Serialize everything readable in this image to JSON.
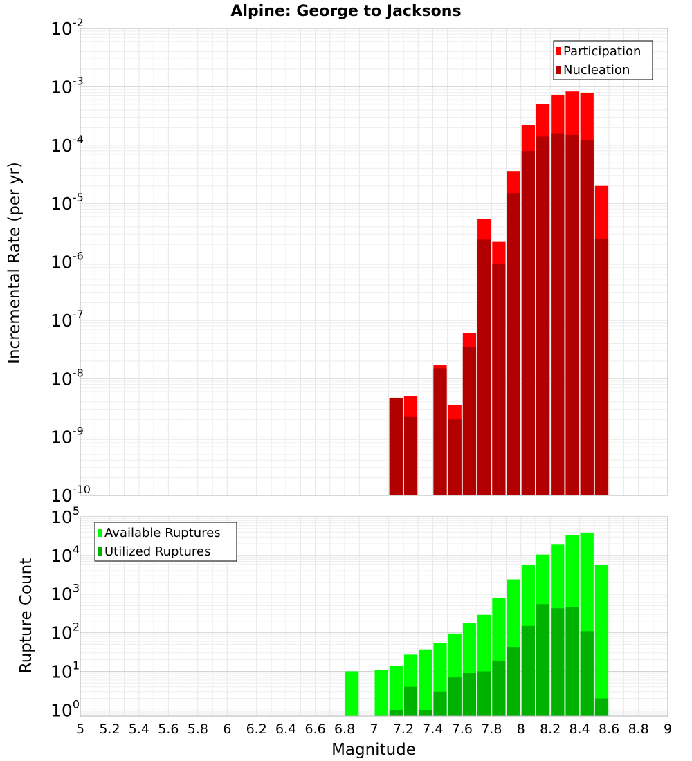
{
  "chart_data": [
    {
      "type": "bar",
      "title": "Alpine: George to Jacksons",
      "xlabel": "",
      "ylabel": "Incremental Rate (per yr)",
      "y_scale": "log",
      "ylim": [
        1e-10,
        0.01
      ],
      "xlim": [
        5,
        9
      ],
      "y_ticks": [
        {
          "base": "10",
          "exp": "-10"
        },
        {
          "base": "10",
          "exp": "-9"
        },
        {
          "base": "10",
          "exp": "-8"
        },
        {
          "base": "10",
          "exp": "-7"
        },
        {
          "base": "10",
          "exp": "-6"
        },
        {
          "base": "10",
          "exp": "-5"
        },
        {
          "base": "10",
          "exp": "-4"
        },
        {
          "base": "10",
          "exp": "-3"
        },
        {
          "base": "10",
          "exp": "-2"
        }
      ],
      "grid": true,
      "legend_position": "top-right",
      "bar_width": 0.1,
      "series": [
        {
          "name": "Participation",
          "color": "#ff0000",
          "points": [
            [
              7.15,
              4.7e-09
            ],
            [
              7.25,
              5e-09
            ],
            [
              7.45,
              1.7e-08
            ],
            [
              7.55,
              3.5e-09
            ],
            [
              7.65,
              6e-08
            ],
            [
              7.75,
              5.5e-06
            ],
            [
              7.85,
              2.2e-06
            ],
            [
              7.95,
              3.6e-05
            ],
            [
              8.05,
              0.00022
            ],
            [
              8.15,
              0.0005
            ],
            [
              8.25,
              0.00073
            ],
            [
              8.35,
              0.00083
            ],
            [
              8.45,
              0.00077
            ],
            [
              8.55,
              2e-05
            ]
          ]
        },
        {
          "name": "Nucleation",
          "color": "#b20000",
          "points": [
            [
              7.15,
              4.6e-09
            ],
            [
              7.25,
              2.2e-09
            ],
            [
              7.45,
              1.5e-08
            ],
            [
              7.55,
              2e-09
            ],
            [
              7.65,
              3.5e-08
            ],
            [
              7.75,
              2.4e-06
            ],
            [
              7.85,
              9.3e-07
            ],
            [
              7.95,
              1.5e-05
            ],
            [
              8.05,
              8e-05
            ],
            [
              8.15,
              0.00014
            ],
            [
              8.25,
              0.00016
            ],
            [
              8.35,
              0.00015
            ],
            [
              8.45,
              0.00012
            ],
            [
              8.55,
              2.5e-06
            ]
          ]
        }
      ]
    },
    {
      "type": "bar",
      "title": "",
      "xlabel": "Magnitude",
      "ylabel": "Rupture Count",
      "y_scale": "log",
      "ylim": [
        0.7,
        100000.0
      ],
      "xlim": [
        5,
        9
      ],
      "x_ticks": [
        "5",
        "5.2",
        "5.4",
        "5.6",
        "5.8",
        "6",
        "6.2",
        "6.4",
        "6.6",
        "6.8",
        "7",
        "7.2",
        "7.4",
        "7.6",
        "7.8",
        "8",
        "8.2",
        "8.4",
        "8.6",
        "8.8",
        "9"
      ],
      "y_ticks": [
        {
          "base": "10",
          "exp": "0"
        },
        {
          "base": "10",
          "exp": "1"
        },
        {
          "base": "10",
          "exp": "2"
        },
        {
          "base": "10",
          "exp": "3"
        },
        {
          "base": "10",
          "exp": "4"
        },
        {
          "base": "10",
          "exp": "5"
        }
      ],
      "grid": true,
      "legend_position": "top-left",
      "bar_width": 0.1,
      "series": [
        {
          "name": "Available Ruptures",
          "color": "#00ff00",
          "points": [
            [
              6.85,
              10
            ],
            [
              7.05,
              11
            ],
            [
              7.15,
              14
            ],
            [
              7.25,
              27
            ],
            [
              7.35,
              37
            ],
            [
              7.45,
              53
            ],
            [
              7.55,
              95
            ],
            [
              7.65,
              175
            ],
            [
              7.75,
              290
            ],
            [
              7.85,
              780
            ],
            [
              7.95,
              2400
            ],
            [
              8.05,
              5600
            ],
            [
              8.15,
              10500
            ],
            [
              8.25,
              19000
            ],
            [
              8.35,
              34000
            ],
            [
              8.45,
              39000
            ],
            [
              8.55,
              5800
            ]
          ]
        },
        {
          "name": "Utilized Ruptures",
          "color": "#00b200",
          "points": [
            [
              7.15,
              1
            ],
            [
              7.25,
              4
            ],
            [
              7.35,
              1
            ],
            [
              7.45,
              3
            ],
            [
              7.55,
              7
            ],
            [
              7.65,
              9
            ],
            [
              7.75,
              10
            ],
            [
              7.85,
              19
            ],
            [
              7.95,
              43
            ],
            [
              8.05,
              150
            ],
            [
              8.15,
              550
            ],
            [
              8.25,
              430
            ],
            [
              8.35,
              460
            ],
            [
              8.45,
              110
            ],
            [
              8.55,
              2
            ]
          ]
        }
      ]
    }
  ]
}
